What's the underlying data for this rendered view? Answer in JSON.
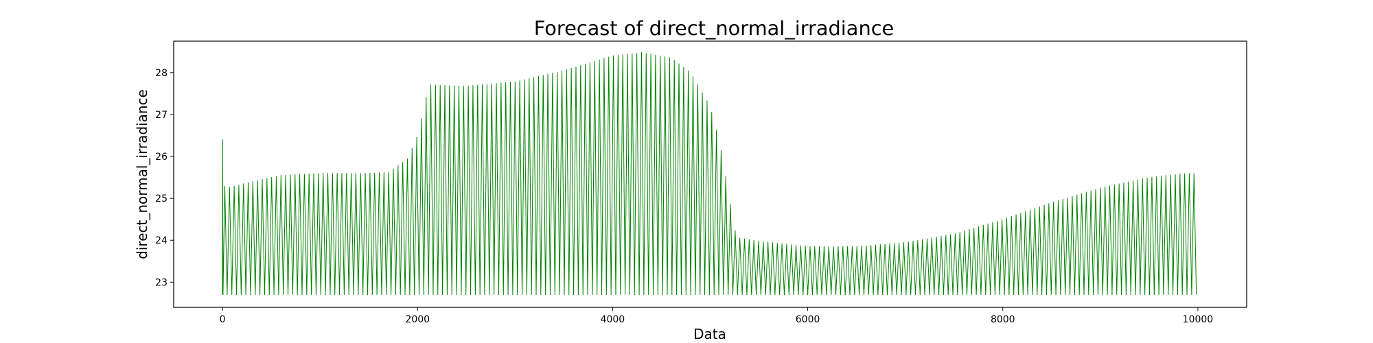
{
  "chart_data": {
    "type": "line",
    "title": "Forecast of direct_normal_irradiance",
    "xlabel": "Data",
    "ylabel": "direct_normal_irradiance",
    "xlim": [
      -500,
      10500
    ],
    "ylim": [
      22.4,
      28.75
    ],
    "xticks": [
      0,
      2000,
      4000,
      6000,
      8000,
      10000
    ],
    "yticks": [
      23,
      24,
      25,
      26,
      27,
      28
    ],
    "grid": false,
    "legend": "none",
    "color": "#008000",
    "series": [
      {
        "x_start": 0,
        "x_end": 10000,
        "period": 48,
        "trough": 22.7,
        "first_point": 26.4,
        "upper_envelope": {
          "x": [
            0,
            20,
            40,
            80,
            300,
            600,
            1000,
            1500,
            1700,
            1900,
            2000,
            2060,
            2100,
            2140,
            2200,
            2500,
            3000,
            3500,
            4000,
            4300,
            4600,
            4800,
            5000,
            5100,
            5200,
            5240,
            5300,
            5500,
            6000,
            6500,
            7000,
            7500,
            8000,
            8500,
            9000,
            9500,
            9800,
            10000
          ],
          "y": [
            25.3,
            25.3,
            25.25,
            25.27,
            25.4,
            25.55,
            25.6,
            25.6,
            25.62,
            25.95,
            26.5,
            27.1,
            27.55,
            27.72,
            27.7,
            27.68,
            27.78,
            28.05,
            28.4,
            28.48,
            28.35,
            28.0,
            27.2,
            26.3,
            25.0,
            24.3,
            24.05,
            23.98,
            23.85,
            23.85,
            23.95,
            24.15,
            24.5,
            24.9,
            25.25,
            25.5,
            25.58,
            25.6
          ]
        }
      }
    ]
  }
}
